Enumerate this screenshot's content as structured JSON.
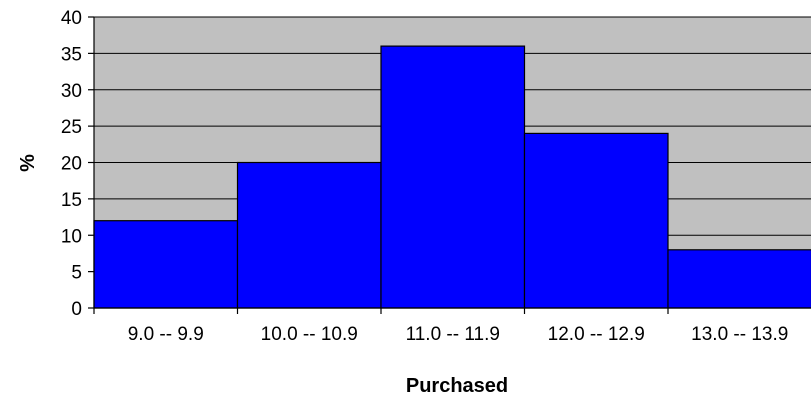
{
  "chart_data": {
    "type": "bar",
    "categories": [
      "9.0 -- 9.9",
      "10.0 -- 10.9",
      "11.0 -- 11.9",
      "12.0 -- 12.9",
      "13.0 -- 13.9"
    ],
    "values": [
      12,
      20,
      36,
      24,
      8
    ],
    "title": "",
    "xlabel": "Purchased",
    "ylabel": "%",
    "ylim": [
      0,
      40
    ],
    "yticks": [
      0,
      5,
      10,
      15,
      20,
      25,
      30,
      35,
      40
    ],
    "grid": true,
    "legend": "none",
    "colors": {
      "bar_fill": "#0000ff",
      "bar_stroke": "#000000",
      "plot_background": "#c0c0c0",
      "gridline": "#000000"
    }
  }
}
